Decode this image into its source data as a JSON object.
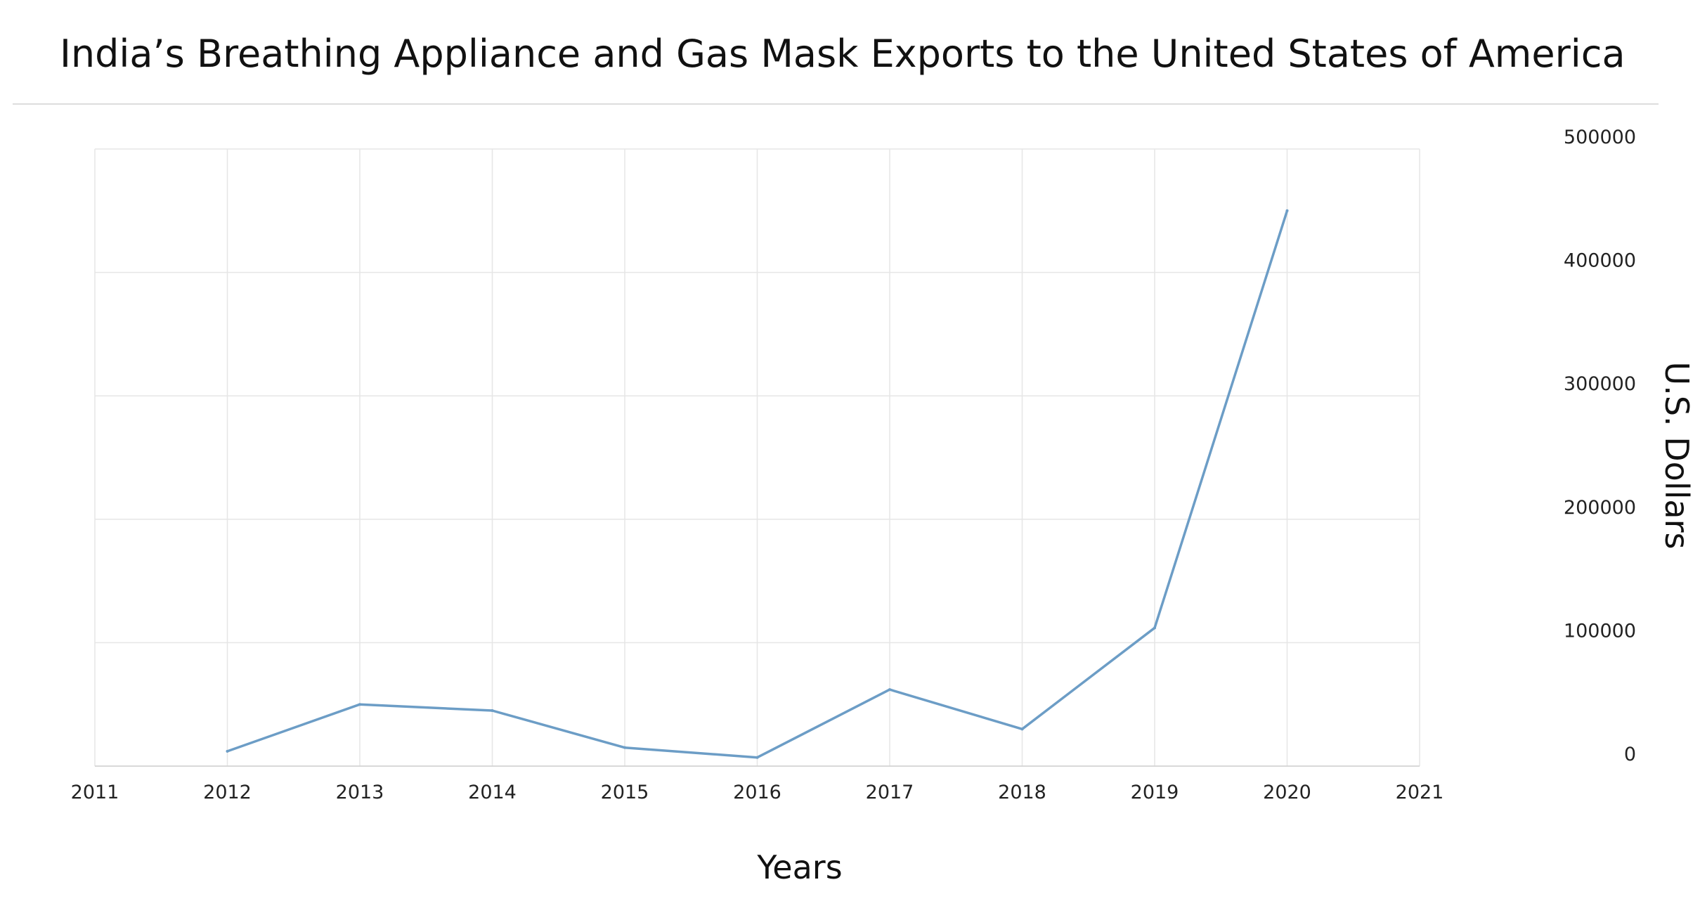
{
  "chart_data": {
    "type": "line",
    "title": "India’s Breathing Appliance and Gas Mask Exports to the United States of America",
    "xlabel": "Years",
    "ylabel": "U.S. Dollars",
    "xlim": [
      2011,
      2021
    ],
    "ylim": [
      0,
      500000
    ],
    "x_ticks": [
      "2011",
      "2012",
      "2013",
      "2014",
      "2015",
      "2016",
      "2017",
      "2018",
      "2019",
      "2020",
      "2021"
    ],
    "y_ticks": [
      "0",
      "100000",
      "200000",
      "300000",
      "400000",
      "500000"
    ],
    "y_axis_side": "right",
    "grid": true,
    "legend": false,
    "series": [
      {
        "color": "#6c9dc6",
        "x": [
          2012,
          2013,
          2014,
          2015,
          2016,
          2017,
          2018,
          2019,
          2020
        ],
        "values": [
          12000,
          50000,
          45000,
          15000,
          7000,
          62000,
          30000,
          112000,
          450000
        ]
      }
    ]
  }
}
